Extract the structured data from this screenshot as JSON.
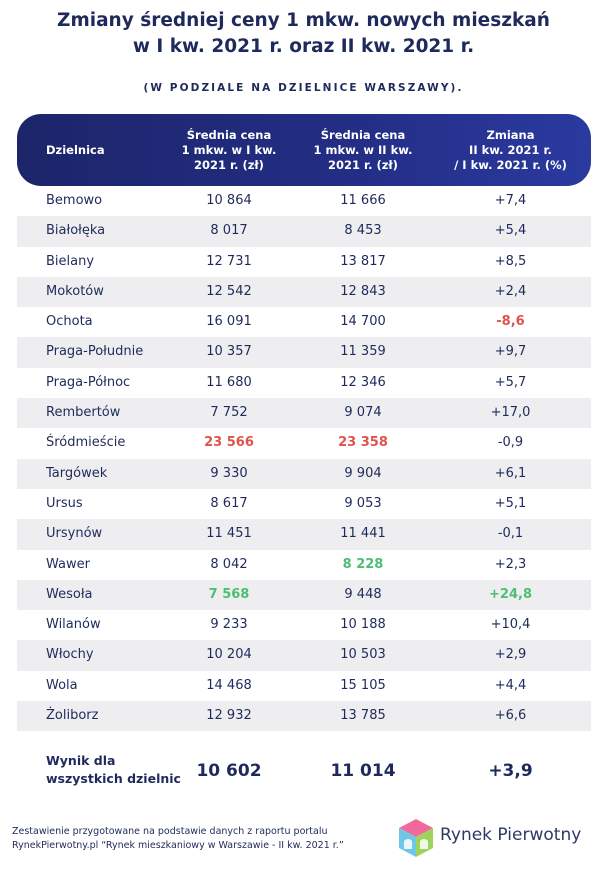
{
  "title_line1": "Zmiany średniej ceny 1 mkw. nowych mieszkań",
  "title_line2": "w I kw. 2021 r. oraz II kw. 2021 r.",
  "subtitle": "(W PODZIALE NA DZIELNICE WARSZAWY).",
  "headers": {
    "district": "Dzielnica",
    "q1": "Średnia cena\n1 mkw. w I kw.\n2021 r. (zł)",
    "q2": "Średnia cena\n1 mkw. w II kw.\n2021 r. (zł)",
    "change": "Zmiana\nII kw. 2021 r.\n/ I kw. 2021 r. (%)"
  },
  "rows": [
    {
      "district": "Bemowo",
      "q1": "10 864",
      "q2": "11 666",
      "change": "+7,4"
    },
    {
      "district": "Białołęka",
      "q1": "8 017",
      "q2": "8 453",
      "change": "+5,4"
    },
    {
      "district": "Bielany",
      "q1": "12 731",
      "q2": "13 817",
      "change": "+8,5"
    },
    {
      "district": "Mokotów",
      "q1": "12 542",
      "q2": "12 843",
      "change": "+2,4"
    },
    {
      "district": "Ochota",
      "q1": "16 091",
      "q2": "14 700",
      "change": "-8,6"
    },
    {
      "district": "Praga-Południe",
      "q1": "10 357",
      "q2": "11 359",
      "change": "+9,7"
    },
    {
      "district": "Praga-Północ",
      "q1": "11 680",
      "q2": "12 346",
      "change": "+5,7"
    },
    {
      "district": "Rembertów",
      "q1": "7 752",
      "q2": "9 074",
      "change": "+17,0"
    },
    {
      "district": "Śródmieście",
      "q1": "23 566",
      "q2": "23 358",
      "change": "-0,9"
    },
    {
      "district": "Targówek",
      "q1": "9 330",
      "q2": "9 904",
      "change": "+6,1"
    },
    {
      "district": "Ursus",
      "q1": "8 617",
      "q2": "9 053",
      "change": "+5,1"
    },
    {
      "district": "Ursynów",
      "q1": "11 451",
      "q2": "11 441",
      "change": "-0,1"
    },
    {
      "district": "Wawer",
      "q1": "8 042",
      "q2": "8 228",
      "change": "+2,3"
    },
    {
      "district": "Wesoła",
      "q1": "7 568",
      "q2": "9 448",
      "change": "+24,8"
    },
    {
      "district": "Wilanów",
      "q1": "9 233",
      "q2": "10 188",
      "change": "+10,4"
    },
    {
      "district": "Włochy",
      "q1": "10 204",
      "q2": "10 503",
      "change": "+2,9"
    },
    {
      "district": "Wola",
      "q1": "14 468",
      "q2": "15 105",
      "change": "+4,4"
    },
    {
      "district": "Żoliborz",
      "q1": "12 932",
      "q2": "13 785",
      "change": "+6,6"
    }
  ],
  "total": {
    "label": "Wynik dla\nwszystkich dzielnic",
    "q1": "10 602",
    "q2": "11 014",
    "change": "+3,9"
  },
  "footer_line1": "Zestawienie przygotowane na podstawie danych z raportu portalu",
  "footer_line2": "RynekPierwotny.pl “Rynek mieszkaniowy w Warszawie - II kw. 2021 r.”",
  "logo_text": "Rynek Pierwotny",
  "colors": {
    "navy": "#1f2a5c",
    "header": "#232e86",
    "red": "#e0534b",
    "green": "#4cbf73",
    "stripe": "#eeeef0"
  }
}
